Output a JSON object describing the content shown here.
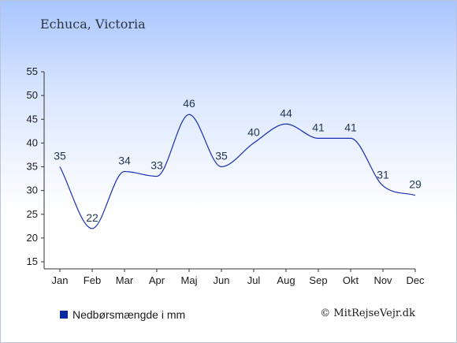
{
  "title": "Echuca, Victoria",
  "legend_label": "Nedbørsmængde i mm",
  "copyright": "© MitRejseVejr.dk",
  "colors": {
    "line": "#1a2fb0",
    "legend_swatch": "#0a2aa0",
    "axis": "#333333"
  },
  "chart_data": {
    "type": "line",
    "categories": [
      "Jan",
      "Feb",
      "Mar",
      "Apr",
      "Maj",
      "Jun",
      "Jul",
      "Aug",
      "Sep",
      "Okt",
      "Nov",
      "Dec"
    ],
    "series": [
      {
        "name": "Nedbørsmængde i mm",
        "values": [
          35,
          22,
          34,
          33,
          46,
          35,
          40,
          44,
          41,
          41,
          31,
          29
        ]
      }
    ],
    "ylim": [
      15,
      55
    ],
    "yticks": [
      15,
      20,
      25,
      30,
      35,
      40,
      45,
      50,
      55
    ],
    "grid": false,
    "legend": "bottom-left"
  }
}
